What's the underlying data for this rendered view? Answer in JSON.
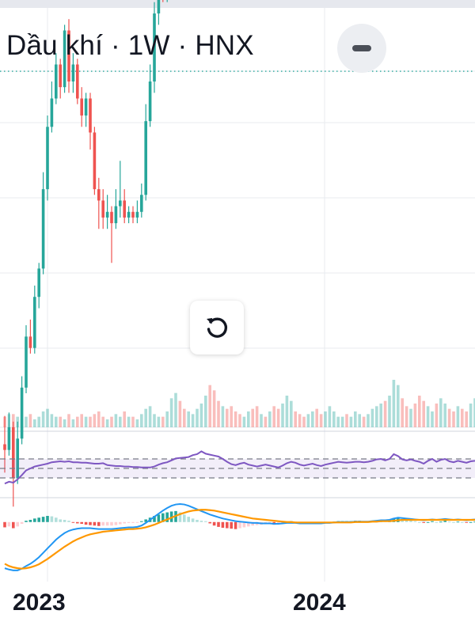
{
  "header": {
    "title": "Dầu khí · 1W · HNX"
  },
  "colors": {
    "up": "#26a69a",
    "down": "#ef5350",
    "rsi": "#7e57c2",
    "macd": "#2196f3",
    "signal": "#ff9800",
    "grid": "#e9ebef",
    "price_line": "#26a69a"
  },
  "icons": {
    "collapse": "minus-icon",
    "reset": "rotate-ccw-icon"
  },
  "chart_data": {
    "type": "candlestick",
    "interval": "1W",
    "x_labels": [
      "2023",
      "2024"
    ],
    "price_range": [
      -2.35,
      1.0
    ],
    "last_price_level": 0.79,
    "candles": [
      [
        -2.5,
        -2.55,
        -2.25,
        -2.75
      ],
      [
        -2.55,
        -2.35,
        -2.22,
        -2.6
      ],
      [
        -2.35,
        -2.8,
        -2.3,
        -3.05
      ],
      [
        -2.8,
        -2.45,
        -2.3,
        -2.85
      ],
      [
        -2.45,
        -2.0,
        -1.9,
        -2.5
      ],
      [
        -2.0,
        -1.55,
        -1.45,
        -2.05
      ],
      [
        -1.55,
        -1.65,
        -1.4,
        -1.7
      ],
      [
        -1.65,
        -1.2,
        -1.1,
        -1.7
      ],
      [
        -1.2,
        -0.95,
        -0.9,
        -1.3
      ],
      [
        -0.95,
        -0.25,
        -0.1,
        -1.0
      ],
      [
        -0.25,
        0.3,
        0.4,
        -0.35
      ],
      [
        0.3,
        0.55,
        0.7,
        0.25
      ],
      [
        0.55,
        0.85,
        0.95,
        0.5
      ],
      [
        0.85,
        0.65,
        0.9,
        0.55
      ],
      [
        0.65,
        1.15,
        1.2,
        0.6
      ],
      [
        1.15,
        0.7,
        1.25,
        0.6
      ],
      [
        0.7,
        0.85,
        0.95,
        0.6
      ],
      [
        0.85,
        0.55,
        0.9,
        0.5
      ],
      [
        0.55,
        0.4,
        0.65,
        0.3
      ],
      [
        0.4,
        0.55,
        0.6,
        0.3
      ],
      [
        0.55,
        0.25,
        0.6,
        0.1
      ],
      [
        0.25,
        -0.25,
        0.3,
        -0.3
      ],
      [
        -0.25,
        -0.35,
        -0.15,
        -0.6
      ],
      [
        -0.35,
        -0.5,
        -0.25,
        -0.6
      ],
      [
        -0.5,
        -0.45,
        -0.3,
        -0.6
      ],
      [
        -0.45,
        -0.55,
        -0.4,
        -0.9
      ],
      [
        -0.55,
        -0.4,
        -0.25,
        -0.6
      ],
      [
        -0.4,
        -0.35,
        0.0,
        -0.5
      ],
      [
        -0.35,
        -0.5,
        -0.25,
        -0.55
      ],
      [
        -0.5,
        -0.45,
        -0.4,
        -0.55
      ],
      [
        -0.45,
        -0.5,
        -0.4,
        -0.55
      ],
      [
        -0.5,
        -0.45,
        -0.35,
        -0.55
      ],
      [
        -0.45,
        -0.3,
        -0.2,
        -0.5
      ],
      [
        -0.3,
        0.35,
        0.5,
        -0.35
      ],
      [
        0.35,
        0.7,
        0.85,
        0.3
      ],
      [
        0.7,
        1.3,
        1.4,
        0.6
      ],
      [
        1.3,
        1.55,
        1.7,
        1.2
      ],
      [
        1.55,
        1.5,
        1.7,
        1.4
      ],
      [
        1.5,
        2.2,
        2.4,
        1.4
      ],
      [
        2.2,
        2.65,
        2.8,
        2.1
      ],
      [
        2.65,
        2.9,
        3.1,
        2.55
      ],
      [
        2.9,
        2.75,
        3.05,
        2.6
      ],
      [
        2.75,
        2.35,
        2.9,
        2.25
      ],
      [
        2.35,
        2.55,
        2.75,
        2.25
      ],
      [
        2.55,
        3.3,
        3.5,
        2.45
      ],
      [
        3.3,
        3.55,
        3.8,
        3.2
      ],
      [
        3.55,
        4.25,
        4.4,
        3.45
      ],
      [
        4.25,
        5.5,
        5.7,
        4.1
      ],
      [
        5.5,
        5.0,
        5.65,
        4.9
      ],
      [
        5.0,
        4.8,
        5.1,
        4.6
      ],
      [
        4.8,
        4.55,
        4.95,
        4.4
      ],
      [
        4.55,
        4.7,
        4.85,
        4.45
      ],
      [
        4.7,
        4.15,
        4.8,
        4.0
      ],
      [
        4.15,
        3.75,
        4.3,
        3.6
      ],
      [
        3.75,
        3.15,
        3.85,
        2.8
      ],
      [
        3.15,
        2.8,
        3.3,
        2.65
      ],
      [
        2.8,
        3.0,
        3.2,
        2.55
      ],
      [
        3.0,
        3.3,
        3.45,
        2.9
      ],
      [
        3.3,
        3.0,
        3.4,
        2.85
      ],
      [
        3.0,
        2.55,
        3.1,
        2.4
      ],
      [
        2.55,
        2.75,
        2.9,
        2.45
      ],
      [
        2.75,
        2.55,
        2.85,
        2.35
      ],
      [
        2.55,
        2.7,
        2.85,
        2.5
      ],
      [
        2.7,
        2.35,
        2.8,
        2.1
      ],
      [
        2.35,
        2.0,
        2.45,
        1.75
      ],
      [
        2.0,
        2.6,
        2.75,
        1.9
      ],
      [
        2.6,
        3.15,
        3.3,
        2.45
      ],
      [
        3.15,
        3.45,
        3.6,
        2.95
      ],
      [
        3.45,
        3.35,
        3.7,
        3.1
      ],
      [
        3.35,
        2.95,
        3.45,
        2.8
      ],
      [
        2.95,
        2.6,
        3.1,
        2.5
      ],
      [
        2.6,
        2.8,
        2.95,
        2.4
      ],
      [
        2.8,
        2.95,
        3.1,
        2.65
      ],
      [
        2.95,
        2.7,
        3.05,
        2.55
      ],
      [
        2.7,
        2.55,
        2.85,
        2.45
      ],
      [
        2.55,
        2.8,
        2.95,
        2.5
      ],
      [
        2.8,
        3.0,
        3.15,
        2.7
      ],
      [
        3.0,
        3.15,
        3.3,
        2.85
      ],
      [
        3.15,
        3.3,
        3.45,
        3.0
      ],
      [
        3.3,
        3.3,
        3.4,
        3.15
      ],
      [
        3.3,
        3.25,
        3.4,
        3.1
      ],
      [
        3.25,
        3.4,
        3.5,
        3.15
      ],
      [
        3.4,
        3.45,
        3.6,
        3.3
      ],
      [
        3.45,
        3.45,
        3.55,
        3.35
      ],
      [
        3.45,
        3.35,
        3.55,
        3.2
      ],
      [
        3.35,
        3.45,
        3.6,
        3.25
      ],
      [
        3.45,
        3.7,
        3.85,
        3.35
      ],
      [
        3.7,
        3.95,
        4.1,
        3.55
      ],
      [
        3.95,
        4.05,
        4.25,
        3.8
      ],
      [
        4.05,
        3.7,
        4.1,
        3.55
      ],
      [
        3.7,
        4.15,
        4.3,
        3.6
      ],
      [
        4.15,
        5.4,
        6.0,
        4.0
      ],
      [
        5.4,
        5.7,
        6.6,
        4.8
      ],
      [
        5.7,
        4.95,
        5.8,
        4.8
      ],
      [
        4.95,
        4.75,
        5.05,
        4.6
      ],
      [
        4.75,
        4.9,
        5.0,
        4.55
      ],
      [
        4.9,
        4.45,
        5.0,
        4.3
      ],
      [
        4.45,
        4.35,
        4.8,
        4.05
      ],
      [
        4.35,
        3.85,
        4.5,
        3.55
      ],
      [
        3.85,
        4.45,
        4.6,
        3.75
      ],
      [
        4.45,
        4.95,
        5.05,
        4.25
      ],
      [
        4.95,
        4.3,
        5.05,
        4.15
      ],
      [
        4.3,
        4.75,
        4.85,
        4.05
      ],
      [
        4.75,
        5.1,
        5.4,
        4.6
      ],
      [
        5.1,
        4.65,
        5.25,
        4.55
      ],
      [
        4.65,
        4.35,
        4.75,
        4.2
      ],
      [
        4.35,
        4.65,
        4.75,
        4.15
      ],
      [
        4.65,
        4.5,
        4.8,
        4.35
      ],
      [
        4.5,
        4.2,
        4.65,
        4.05
      ],
      [
        4.2,
        4.45,
        4.55,
        4.1
      ],
      [
        4.45,
        4.6,
        4.75,
        4.3
      ]
    ],
    "volume": [
      4,
      5,
      5,
      4,
      3,
      4,
      5,
      3,
      4,
      6,
      7,
      5,
      4,
      4,
      3,
      5,
      3,
      4,
      5,
      4,
      4,
      5,
      6,
      4,
      3,
      4,
      5,
      4,
      6,
      4,
      4,
      3,
      5,
      7,
      8,
      5,
      4,
      4,
      6,
      11,
      13,
      10,
      7,
      6,
      5,
      7,
      9,
      12,
      16,
      14,
      10,
      8,
      7,
      8,
      6,
      5,
      4,
      6,
      7,
      8,
      5,
      4,
      6,
      8,
      7,
      9,
      12,
      10,
      6,
      5,
      4,
      5,
      6,
      7,
      5,
      6,
      8,
      6,
      4,
      4,
      5,
      4,
      6,
      5,
      4,
      5,
      7,
      8,
      9,
      10,
      12,
      18,
      16,
      11,
      8,
      7,
      9,
      12,
      10,
      8,
      6,
      9,
      11,
      9,
      7,
      6,
      8,
      7,
      6,
      9,
      11
    ],
    "volume_axis_range": [
      0,
      30
    ],
    "rsi": {
      "levels": [
        70,
        50,
        30
      ],
      "band": [
        30,
        70
      ],
      "range": [
        0,
        100
      ],
      "values": [
        18,
        22,
        20,
        27,
        36,
        46,
        50,
        54,
        56,
        58,
        60,
        63,
        64,
        65,
        64,
        65,
        63,
        63,
        62,
        62,
        61,
        60,
        60,
        61,
        57,
        56,
        55,
        55,
        54,
        54,
        53,
        53,
        52,
        52,
        52,
        54,
        58,
        61,
        63,
        67,
        71,
        72,
        73,
        74,
        78,
        80,
        86,
        81,
        79,
        77,
        75,
        70,
        64,
        59,
        57,
        60,
        62,
        58,
        56,
        54,
        56,
        58,
        56,
        54,
        52,
        56,
        61,
        64,
        62,
        58,
        56,
        58,
        60,
        57,
        55,
        58,
        60,
        62,
        64,
        63,
        62,
        63,
        64,
        64,
        63,
        64,
        66,
        69,
        70,
        67,
        70,
        80,
        76,
        69,
        67,
        69,
        66,
        64,
        60,
        66,
        70,
        64,
        68,
        70,
        65,
        63,
        66,
        64,
        62,
        65,
        66
      ],
      "axis_range": [
        -10,
        110
      ]
    },
    "macd": {
      "range": [
        -1.3,
        0.5
      ],
      "histogram": [
        -0.12,
        -0.1,
        -0.14,
        -0.1,
        -0.04,
        0.03,
        0.05,
        0.08,
        0.1,
        0.12,
        0.14,
        0.13,
        0.1,
        0.06,
        0.05,
        0.03,
        -0.01,
        -0.03,
        -0.04,
        -0.06,
        -0.07,
        -0.08,
        -0.09,
        -0.08,
        -0.08,
        -0.08,
        -0.07,
        -0.05,
        -0.03,
        -0.02,
        -0.02,
        -0.01,
        0.02,
        0.06,
        0.1,
        0.14,
        0.17,
        0.2,
        0.22,
        0.24,
        0.25,
        0.22,
        0.17,
        0.12,
        0.08,
        0.05,
        0.03,
        0.02,
        -0.03,
        -0.08,
        -0.11,
        -0.13,
        -0.14,
        -0.15,
        -0.16,
        -0.14,
        -0.12,
        -0.1,
        -0.08,
        -0.07,
        -0.06,
        -0.05,
        -0.04,
        -0.06,
        -0.05,
        -0.02,
        0.01,
        0.02,
        0.01,
        -0.01,
        -0.02,
        -0.02,
        -0.01,
        -0.01,
        -0.02,
        -0.01,
        0.0,
        0.01,
        0.02,
        0.02,
        0.02,
        0.02,
        0.03,
        0.03,
        0.02,
        0.02,
        0.03,
        0.04,
        0.05,
        0.04,
        0.05,
        0.09,
        0.1,
        0.07,
        0.05,
        0.04,
        0.02,
        0.0,
        -0.02,
        0.0,
        0.02,
        0.0,
        0.01,
        0.03,
        0.01,
        0.0,
        0.01,
        0.0,
        -0.01,
        0.0,
        0.01
      ],
      "macd_line": [
        -1.05,
        -1.08,
        -1.1,
        -1.1,
        -1.06,
        -1.0,
        -0.95,
        -0.88,
        -0.8,
        -0.7,
        -0.6,
        -0.5,
        -0.4,
        -0.32,
        -0.25,
        -0.2,
        -0.17,
        -0.15,
        -0.14,
        -0.14,
        -0.14,
        -0.15,
        -0.16,
        -0.16,
        -0.16,
        -0.16,
        -0.15,
        -0.14,
        -0.13,
        -0.12,
        -0.12,
        -0.11,
        -0.08,
        -0.02,
        0.05,
        0.12,
        0.19,
        0.26,
        0.32,
        0.37,
        0.4,
        0.41,
        0.4,
        0.37,
        0.33,
        0.29,
        0.25,
        0.21,
        0.17,
        0.14,
        0.11,
        0.08,
        0.06,
        0.04,
        0.02,
        0.01,
        0.0,
        -0.01,
        -0.02,
        -0.02,
        -0.03,
        -0.03,
        -0.03,
        -0.04,
        -0.04,
        -0.03,
        -0.02,
        -0.02,
        -0.02,
        -0.03,
        -0.03,
        -0.03,
        -0.03,
        -0.03,
        -0.03,
        -0.02,
        -0.02,
        -0.01,
        0.0,
        0.0,
        0.0,
        0.0,
        0.01,
        0.01,
        0.01,
        0.01,
        0.02,
        0.03,
        0.04,
        0.04,
        0.05,
        0.08,
        0.1,
        0.09,
        0.08,
        0.07,
        0.06,
        0.05,
        0.04,
        0.05,
        0.06,
        0.05,
        0.06,
        0.07,
        0.06,
        0.05,
        0.06,
        0.05,
        0.04,
        0.05,
        0.06
      ],
      "signal_line": [
        -0.95,
        -1.0,
        -1.03,
        -1.05,
        -1.06,
        -1.05,
        -1.03,
        -1.0,
        -0.96,
        -0.9,
        -0.84,
        -0.77,
        -0.7,
        -0.63,
        -0.56,
        -0.5,
        -0.44,
        -0.39,
        -0.35,
        -0.31,
        -0.28,
        -0.26,
        -0.24,
        -0.22,
        -0.21,
        -0.2,
        -0.19,
        -0.18,
        -0.17,
        -0.16,
        -0.16,
        -0.15,
        -0.14,
        -0.12,
        -0.09,
        -0.06,
        -0.02,
        0.02,
        0.06,
        0.1,
        0.14,
        0.18,
        0.21,
        0.24,
        0.26,
        0.27,
        0.28,
        0.28,
        0.27,
        0.26,
        0.24,
        0.22,
        0.2,
        0.18,
        0.16,
        0.14,
        0.12,
        0.1,
        0.08,
        0.07,
        0.06,
        0.05,
        0.04,
        0.03,
        0.02,
        0.01,
        0.0,
        0.0,
        -0.01,
        -0.01,
        -0.01,
        -0.01,
        -0.01,
        -0.01,
        -0.01,
        -0.01,
        -0.01,
        -0.01,
        -0.01,
        -0.01,
        -0.01,
        -0.01,
        0.0,
        0.0,
        0.0,
        0.0,
        0.01,
        0.01,
        0.02,
        0.02,
        0.02,
        0.03,
        0.04,
        0.05,
        0.05,
        0.05,
        0.05,
        0.05,
        0.05,
        0.05,
        0.05,
        0.05,
        0.05,
        0.05,
        0.05,
        0.05,
        0.05,
        0.05,
        0.05,
        0.05,
        0.05
      ]
    },
    "grid": true
  }
}
